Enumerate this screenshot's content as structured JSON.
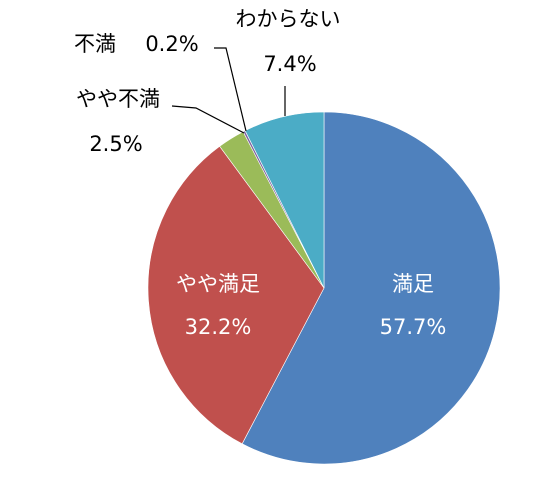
{
  "chart_data": {
    "type": "pie",
    "categories": [
      "満足",
      "やや満足",
      "やや不満",
      "不満",
      "わからない"
    ],
    "values": [
      57.7,
      32.2,
      2.5,
      0.2,
      7.4
    ],
    "value_labels": [
      "57.7%",
      "32.2%",
      "2.5%",
      "0.2%",
      "7.4%"
    ],
    "colors": [
      "#4f81bd",
      "#c0504d",
      "#9bbb59",
      "#8064a2",
      "#4bacc6"
    ]
  }
}
